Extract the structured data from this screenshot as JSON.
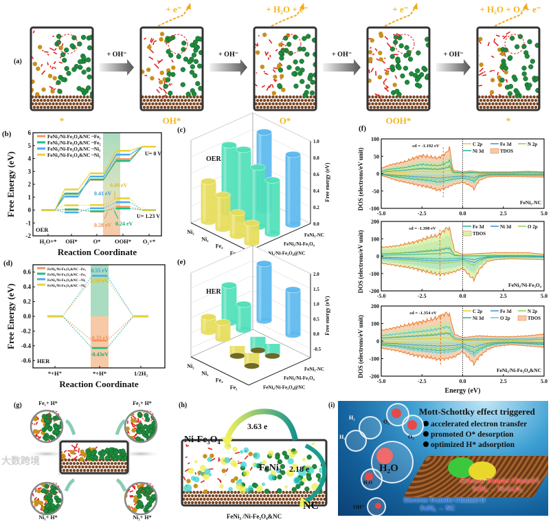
{
  "panel_a": {
    "label": "(a)",
    "states": [
      "*",
      "OH*",
      "O*",
      "OOH*",
      "*"
    ],
    "step_labels": [
      "+ OH⁻",
      "+ OH⁻",
      "+ OH⁻",
      "+ OH⁻"
    ],
    "products": [
      "+ e⁻",
      "+ H₂O + e⁻",
      "+ e⁻",
      "+ H₂O + O₂ + e⁻"
    ]
  },
  "panel_g": {
    "label": "(g)",
    "sites": [
      "Fe₁+ H*",
      "Fe₂+ H*",
      "Ni₁+ H*",
      "Ni₂+ H*"
    ]
  },
  "panel_h": {
    "label": "(h)",
    "ni_fe3o4": "Ni-Fe₃O₄",
    "feni3": "FeNi₃",
    "nc": "NC",
    "transfer_1": "3.63 e",
    "transfer_2": "2.18 e",
    "caption": "FeNi₃ /Ni-Fe₃O₄&NC"
  },
  "panel_i": {
    "label": "(i)",
    "title": "Mott-Schottky effect triggered",
    "bullets": [
      "accelerated electron transfer",
      "promoted O* desorption",
      "optimized H* adsorption"
    ],
    "molecules": {
      "h2_a": "H₂",
      "h2_b": "H₂",
      "o2_a": "O₂",
      "o2_b": "O₂",
      "h2o_big": "H₂O",
      "h2o_small": "H₂O",
      "oh": "OH⁻",
      "e": "e⁻"
    },
    "channel_1": "Electron Transfer Channel I",
    "channel_1_path": "FeNi₃ → Ni-Fe₃O₄",
    "channel_2": "Electron Transfer Channel II",
    "channel_2_path": "FeNi₃ → NC"
  },
  "watermark": "大数跨境",
  "colors": {
    "fe1": "#f0965e",
    "fe2": "#1dbb80",
    "ni1": "#4aa8ea",
    "ni2": "#e6d23a",
    "state_label": "#f2b51c"
  },
  "chart_data": [
    {
      "id": "b",
      "label": "(b)",
      "type": "line",
      "title": "",
      "xlabel": "Reaction Coordinate",
      "ylabel": "Free Energy (eV)",
      "categories": [
        "H₂O+*",
        "OH*",
        "O*",
        "OOH*",
        "O₂+*"
      ],
      "ylim": [
        -2,
        6
      ],
      "yticks": [
        "-2",
        "-1",
        "0",
        "1",
        "2",
        "3",
        "4",
        "5",
        "6"
      ],
      "highlight_between": [
        "O*",
        "OOH*"
      ],
      "series": [
        {
          "name": "FeNi₃/Ni-Fe₃O₄&NC ~Fe₁",
          "color": "#f0965e",
          "U0": [
            0,
            1.25,
            2.35,
            3.95,
            4.92
          ],
          "U1_23": [
            0,
            0.02,
            -0.11,
            0.26,
            0
          ]
        },
        {
          "name": "FeNi₃/Ni-Fe₃O₄&NC ~Fe₂",
          "color": "#1dbb80",
          "U0": [
            0,
            1.28,
            2.38,
            3.81,
            4.92
          ],
          "U1_23": [
            0,
            0.05,
            -0.08,
            0.12,
            0
          ]
        },
        {
          "name": "FeNi₃/Ni-Fe₃O₄&NC ~Ni₁",
          "color": "#4aa8ea",
          "U0": [
            0,
            1.05,
            2.6,
            4.3,
            4.92
          ],
          "U1_23": [
            0,
            -0.18,
            0.14,
            0.61,
            0
          ]
        },
        {
          "name": "FeNi₃/Ni-Fe₃O₄&NC ~Ni₂",
          "color": "#e6d23a",
          "U0": [
            0,
            1.6,
            2.85,
            4.6,
            4.92
          ],
          "U1_23": [
            0,
            0.37,
            0.39,
            0.91,
            0
          ]
        }
      ],
      "annotations": {
        "reaction": "OER",
        "u0": "U= 0 V",
        "u123": "U= 1.23 V",
        "ni2": "0.49 eV",
        "ni1": "0.41 eV",
        "fe1": "0.28 eV",
        "fe2": "0.24 eV"
      }
    },
    {
      "id": "d",
      "label": "(d)",
      "type": "line",
      "title": "",
      "xlabel": "Reaction Coordinate",
      "ylabel": "Free Energy (eV)",
      "categories": [
        "*+H⁺",
        "*+H*",
        "1/2H₂"
      ],
      "ylim": [
        -0.7,
        0.7
      ],
      "yticks": [
        "-0.6",
        "-0.4",
        "-0.2",
        "0.0",
        "0.2",
        "0.4",
        "0.6"
      ],
      "series": [
        {
          "name": "FeNi₃/Ni-Fe₃O₄&NC ~Fe₁",
          "color": "#f0965e",
          "values": [
            0,
            -0.33,
            0
          ]
        },
        {
          "name": "FeNi₃/Ni-Fe₃O₄&NC ~Fe₂",
          "color": "#1dbb80",
          "values": [
            0,
            -0.43,
            0
          ]
        },
        {
          "name": "FeNi₃/Ni-Fe₃O₄&NC ~Ni₁",
          "color": "#4aa8ea",
          "values": [
            0,
            0.55,
            0
          ]
        },
        {
          "name": "FeNi₃/Ni-Fe₃O₄&NC ~Ni₂",
          "color": "#e6d23a",
          "values": [
            0,
            0.5,
            0
          ]
        }
      ],
      "annotations": {
        "reaction": "HER",
        "ni1": "0.55 eV",
        "ni2": "0.50 eV",
        "fe1": "-0.33 eV",
        "fe2": "-0.43eV"
      }
    },
    {
      "id": "c",
      "label": "(c)",
      "type": "bar3d",
      "title": "OER",
      "zlabel": "Free energy (eV)",
      "zlim": [
        0,
        1.0
      ],
      "zticks": [
        "0.0",
        "0.2",
        "0.4",
        "0.6",
        "0.8",
        "1.0"
      ],
      "sites": [
        "Ni₂",
        "Ni₁",
        "Fe₂",
        "Fe₁"
      ],
      "materials": [
        "FeNi₃/Ni-Fe₃O₄@NC",
        "FeNi₃/Ni-Fe₃O₄",
        "FeNi₃-NC"
      ],
      "material_colors": [
        "#e6dc5a",
        "#4fe0b8",
        "#5ab8ee"
      ],
      "values": [
        [
          0.49,
          0.41,
          0.28,
          0.24
        ],
        [
          0.82,
          0.85,
          0.72,
          0.65
        ],
        [
          null,
          0.95,
          null,
          0.85
        ]
      ]
    },
    {
      "id": "e",
      "label": "(e)",
      "type": "bar3d",
      "title": "HER",
      "zlabel": "Free energy (eV)",
      "zlim": [
        -0.5,
        2.0
      ],
      "zticks": [
        "-0.5",
        "0.0",
        "0.5",
        "1.0",
        "1.5",
        "2.0"
      ],
      "sites": [
        "Ni₂",
        "Ni₁",
        "Fe₂",
        "Fe₁"
      ],
      "materials": [
        "FeNi₃/Ni-Fe₃O₄@NC",
        "FeNi₃/Ni-Fe₃O₄",
        "FeNi₃-NC"
      ],
      "material_colors": [
        "#e6dc5a",
        "#4fe0b8",
        "#5ab8ee"
      ],
      "values": [
        [
          0.5,
          0.55,
          -0.33,
          -0.43
        ],
        [
          1.25,
          0.85,
          -0.45,
          -0.4
        ],
        [
          null,
          1.9,
          null,
          1.5
        ]
      ]
    },
    {
      "id": "f1",
      "label": "(f)",
      "type": "area",
      "panel_name": "FeNi₃-NC",
      "xlabel": "",
      "ylabel": "DOS (electrons/eV unit)",
      "xlim": [
        -5,
        5
      ],
      "ylim": [
        -100,
        100
      ],
      "xticks": [
        "-5.0",
        "-2.5",
        "0.0",
        "2.5",
        "5.0"
      ],
      "yticks": [
        "-100",
        "-50",
        "0",
        "50",
        "100"
      ],
      "d_band_center": -1.192,
      "d_band_label": "εd = -1.192 eV",
      "legend": [
        {
          "name": "C 2p",
          "color": "#e8c83a"
        },
        {
          "name": "Fe 3d",
          "color": "#3b8fd8"
        },
        {
          "name": "N 2p",
          "color": "#8fd14f"
        },
        {
          "name": "Ni 3d",
          "color": "#22b388"
        },
        {
          "name": "TDOS",
          "color": "#f6c9a8",
          "fill": true
        }
      ],
      "tdos_up": [
        [
          -5,
          15
        ],
        [
          -4.5,
          25
        ],
        [
          -4,
          30
        ],
        [
          -3.5,
          35
        ],
        [
          -3,
          45
        ],
        [
          -2.5,
          52
        ],
        [
          -2,
          48
        ],
        [
          -1.5,
          45
        ],
        [
          -1,
          60
        ],
        [
          -0.8,
          75
        ],
        [
          -0.6,
          10
        ],
        [
          0,
          5
        ],
        [
          0.5,
          8
        ],
        [
          1,
          5
        ],
        [
          2,
          5
        ],
        [
          3,
          5
        ],
        [
          4,
          7
        ],
        [
          5,
          5
        ]
      ],
      "tdos_down": [
        [
          -5,
          -5
        ],
        [
          -4,
          -20
        ],
        [
          -3,
          -30
        ],
        [
          -2,
          -40
        ],
        [
          -1.5,
          -48
        ],
        [
          -1,
          -40
        ],
        [
          -0.5,
          -30
        ],
        [
          0,
          -25
        ],
        [
          0.5,
          -35
        ],
        [
          0.7,
          -45
        ],
        [
          1,
          -20
        ],
        [
          1.5,
          -10
        ],
        [
          2,
          -8
        ],
        [
          3,
          -8
        ],
        [
          5,
          -10
        ]
      ]
    },
    {
      "id": "f2",
      "label": "",
      "type": "area",
      "panel_name": "FeNi₃/Ni-Fe₃O₄",
      "xlabel": "",
      "ylabel": "DOS (electrons/eV unit)",
      "xlim": [
        -5,
        5
      ],
      "ylim": [
        -200,
        200
      ],
      "xticks": [
        "-5.0",
        "-2.5",
        "0.0",
        "2.5",
        "5.0"
      ],
      "yticks": [
        "-200",
        "-100",
        "0",
        "100",
        "200"
      ],
      "d_band_center": -1.398,
      "d_band_label": "εd = -1.398 eV",
      "legend": [
        {
          "name": "Fe 3d",
          "color": "#22b388"
        },
        {
          "name": "Ni 3d",
          "color": "#3b8fd8"
        },
        {
          "name": "O 2p",
          "color": "#8fd14f"
        },
        {
          "name": "TDOS",
          "color": "#d9f0a8",
          "fill": true
        }
      ],
      "tdos_up": [
        [
          -5,
          50
        ],
        [
          -4,
          60
        ],
        [
          -3,
          80
        ],
        [
          -2,
          110
        ],
        [
          -1.5,
          120
        ],
        [
          -1,
          160
        ],
        [
          -0.8,
          160
        ],
        [
          -0.5,
          30
        ],
        [
          0,
          10
        ],
        [
          1,
          15
        ],
        [
          2,
          20
        ],
        [
          3,
          20
        ],
        [
          4,
          20
        ],
        [
          5,
          10
        ]
      ],
      "tdos_down": [
        [
          -5,
          -40
        ],
        [
          -4,
          -55
        ],
        [
          -3,
          -70
        ],
        [
          -2,
          -95
        ],
        [
          -1.5,
          -105
        ],
        [
          -1,
          -100
        ],
        [
          -0.5,
          -90
        ],
        [
          0,
          -70
        ],
        [
          0.5,
          -120
        ],
        [
          0.7,
          -135
        ],
        [
          1,
          -80
        ],
        [
          1.5,
          -30
        ],
        [
          2,
          -20
        ],
        [
          3,
          -15
        ],
        [
          5,
          -20
        ]
      ]
    },
    {
      "id": "f3",
      "label": "",
      "type": "area",
      "panel_name": "FeNi₃/Ni-Fe₃O₄&NC",
      "xlabel": "Energy (eV)",
      "ylabel": "DOS (electrons/eV unit)",
      "xlim": [
        -5,
        5
      ],
      "ylim": [
        -200,
        200
      ],
      "xticks": [
        "-5.0",
        "-2.5",
        "0.0",
        "2.5",
        "5.0"
      ],
      "yticks": [
        "-200",
        "-100",
        "0",
        "100",
        "200"
      ],
      "d_band_center": -1.354,
      "d_band_label": "εd = -1.354 eV",
      "legend": [
        {
          "name": "C 2p",
          "color": "#e8c83a"
        },
        {
          "name": "Fe 3d",
          "color": "#3b8fd8"
        },
        {
          "name": "N 2p",
          "color": "#8fd14f"
        },
        {
          "name": "Ni 3d",
          "color": "#22b388"
        },
        {
          "name": "O 2p",
          "color": "#5cc6e0"
        },
        {
          "name": "TDOS",
          "color": "#f6c9a8",
          "fill": true
        }
      ],
      "tdos_up": [
        [
          -5,
          60
        ],
        [
          -4,
          80
        ],
        [
          -3,
          100
        ],
        [
          -2,
          120
        ],
        [
          -1.5,
          135
        ],
        [
          -1,
          160
        ],
        [
          -0.8,
          150
        ],
        [
          -0.5,
          40
        ],
        [
          0,
          20
        ],
        [
          1,
          30
        ],
        [
          2,
          25
        ],
        [
          3,
          25
        ],
        [
          4,
          30
        ],
        [
          5,
          40
        ]
      ],
      "tdos_down": [
        [
          -5,
          -40
        ],
        [
          -4,
          -55
        ],
        [
          -3,
          -80
        ],
        [
          -2,
          -95
        ],
        [
          -1.5,
          -105
        ],
        [
          -1,
          -100
        ],
        [
          -0.5,
          -90
        ],
        [
          0,
          -60
        ],
        [
          0.5,
          -110
        ],
        [
          0.7,
          -130
        ],
        [
          1,
          -90
        ],
        [
          1.5,
          -50
        ],
        [
          2,
          -30
        ],
        [
          3,
          -20
        ],
        [
          5,
          -35
        ]
      ]
    }
  ]
}
